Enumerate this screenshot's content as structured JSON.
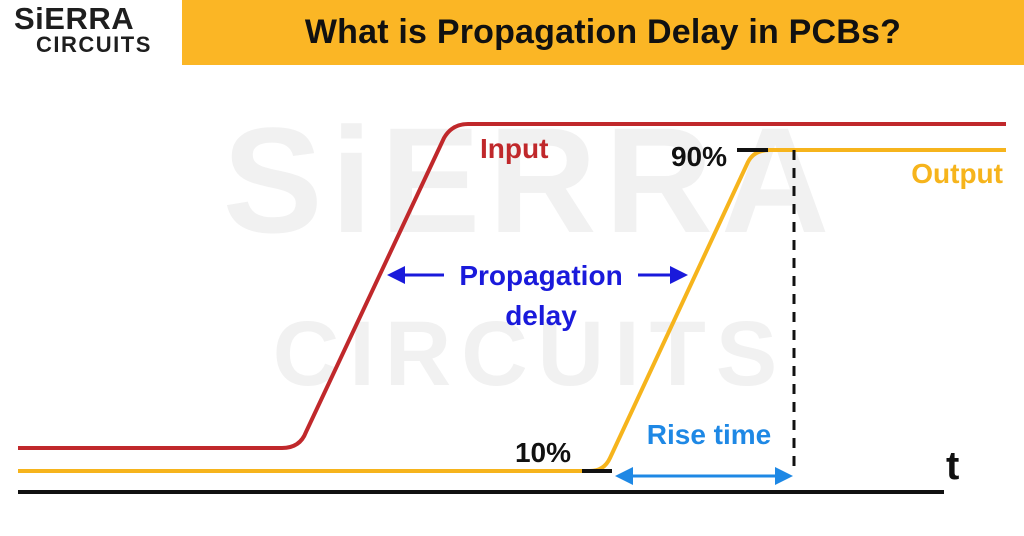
{
  "header": {
    "logo_line1": "SiERRA",
    "logo_line2": "CIRCUITS",
    "title": "What is Propagation Delay in PCBs?"
  },
  "watermark": {
    "line1": "SiERRA",
    "line2": "CIRCUITS"
  },
  "diagram": {
    "input_label": "Input",
    "output_label": "Output",
    "level_high": "90%",
    "level_low": "10%",
    "delay_line1": "Propagation",
    "delay_line2": "delay",
    "rise_label": "Rise time",
    "time_axis_label": "t"
  },
  "colors": {
    "brand_yellow": "#fbb625",
    "input_red": "#c0282b",
    "output_yellow": "#f6b41c",
    "delay_blue": "#1a1adb",
    "rise_blue": "#1e88e5"
  }
}
